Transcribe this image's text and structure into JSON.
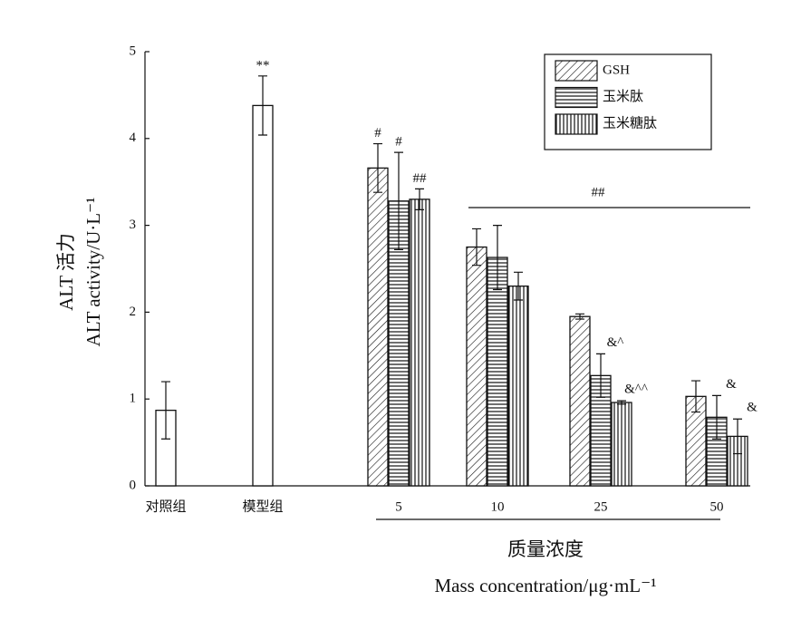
{
  "chart_data": {
    "type": "bar",
    "ylabel": [
      "ALT 活力",
      "ALT activity/U·L⁻¹"
    ],
    "xlabel": [
      "质量浓度",
      "Mass concentration/μg·mL⁻¹"
    ],
    "categories": [
      "对照组",
      "模型组",
      "5",
      "10",
      "25",
      "50"
    ],
    "single": {
      "values": [
        0.87,
        4.38,
        null,
        null,
        null,
        null
      ],
      "errors": [
        0.33,
        0.34,
        null,
        null,
        null,
        null
      ],
      "annotations": [
        null,
        "**",
        null,
        null,
        null,
        null
      ]
    },
    "series": [
      {
        "name": "GSH",
        "color": "#111111",
        "pattern": "diagonal",
        "values": [
          null,
          null,
          3.66,
          2.75,
          1.95,
          1.03
        ],
        "errors": [
          null,
          null,
          0.28,
          0.21,
          0.03,
          0.18
        ],
        "annotations": [
          null,
          null,
          "#",
          null,
          null,
          null
        ]
      },
      {
        "name": "玉米肽",
        "color": "#111111",
        "pattern": "horizontal",
        "values": [
          null,
          null,
          3.28,
          2.63,
          1.27,
          0.79
        ],
        "errors": [
          null,
          null,
          0.56,
          0.37,
          0.25,
          0.25
        ],
        "annotations": [
          null,
          null,
          "#",
          null,
          "&^",
          "&"
        ]
      },
      {
        "name": "玉米糖肽",
        "color": "#111111",
        "pattern": "vertical",
        "values": [
          null,
          null,
          3.3,
          2.3,
          0.96,
          0.57
        ],
        "errors": [
          null,
          null,
          0.12,
          0.16,
          0.02,
          0.2
        ],
        "annotations": [
          null,
          null,
          "##",
          null,
          "&^^",
          "&"
        ]
      }
    ],
    "group_annotation": "##",
    "ylim": [
      0,
      5
    ],
    "yticks": [
      0,
      1,
      2,
      3,
      4,
      5
    ],
    "legend": "upper right"
  }
}
